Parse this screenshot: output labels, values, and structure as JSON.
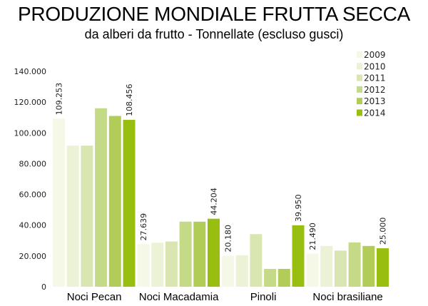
{
  "chart_data": {
    "type": "bar",
    "title": "PRODUZIONE MONDIALE FRUTTA SECCA",
    "subtitle": "da alberi da frutto - Tonnellate (escluso gusci)",
    "xlabel": "",
    "ylabel": "",
    "ylim": [
      0,
      140000
    ],
    "yticks": [
      0,
      20000,
      40000,
      60000,
      80000,
      100000,
      120000,
      140000
    ],
    "ytick_labels": [
      "0",
      "20.000",
      "40.000",
      "60.000",
      "80.000",
      "100.000",
      "120.000",
      "140.000"
    ],
    "grid": false,
    "legend_position": "top-right",
    "categories": [
      "Noci Pecan",
      "Noci Macadamia",
      "Pinoli",
      "Noci brasiliane"
    ],
    "series": [
      {
        "name": "2009",
        "color": "#f5f8e6",
        "values": [
          109253,
          27639,
          20180,
          21490
        ],
        "labels": [
          "109.253",
          "27.639",
          "20.180",
          "21.490"
        ]
      },
      {
        "name": "2010",
        "color": "#ebf2d5",
        "values": [
          91700,
          28600,
          20500,
          26500
        ],
        "labels": [
          null,
          null,
          null,
          null
        ]
      },
      {
        "name": "2011",
        "color": "#d9e6b1",
        "values": [
          91700,
          29400,
          34200,
          23500
        ],
        "labels": [
          null,
          null,
          null,
          null
        ]
      },
      {
        "name": "2012",
        "color": "#c5da86",
        "values": [
          116000,
          42300,
          11600,
          28800
        ],
        "labels": [
          null,
          null,
          null,
          null
        ]
      },
      {
        "name": "2013",
        "color": "#b1cc57",
        "values": [
          111000,
          42300,
          11600,
          26500
        ],
        "labels": [
          null,
          null,
          null,
          null
        ]
      },
      {
        "name": "2014",
        "color": "#98be10",
        "values": [
          108456,
          44204,
          39950,
          25000
        ],
        "labels": [
          "108.456",
          "44.204",
          "39.950",
          "25.000"
        ]
      }
    ]
  }
}
